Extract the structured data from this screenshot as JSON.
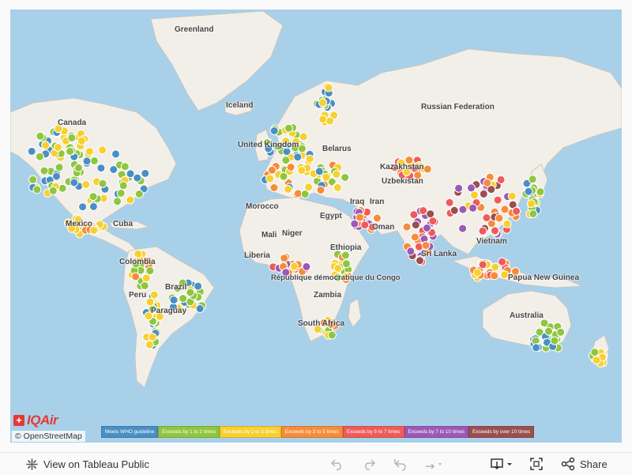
{
  "map": {
    "place_labels": [
      "Greenland",
      "Iceland",
      "Russian Federation",
      "Canada",
      "United Kingdom",
      "Belarus",
      "Kazakhstan",
      "Uzbekistan",
      "Morocco",
      "Iraq",
      "Iran",
      "Egypt",
      "Oman",
      "Mali",
      "Niger",
      "Ethiopia",
      "Liberia",
      "République démocratique du Congo",
      "Sri Lanka",
      "Vietnam",
      "Papua New Guinea",
      "Mexico",
      "Cuba",
      "Colombia",
      "Brazil",
      "Peru",
      "Paraguay",
      "Zambia",
      "South Africa",
      "Australia"
    ],
    "labels": {
      "greenland": "Greenland",
      "iceland": "Iceland",
      "russia": "Russian Federation",
      "canada": "Canada",
      "uk": "United Kingdom",
      "belarus": "Belarus",
      "kazakhstan": "Kazakhstan",
      "uzbekistan": "Uzbekistan",
      "morocco": "Morocco",
      "iraq": "Iraq",
      "iran": "Iran",
      "egypt": "Egypt",
      "oman": "Oman",
      "mali": "Mali",
      "niger": "Niger",
      "ethiopia": "Ethiopia",
      "liberia": "Liberia",
      "drc": "République démocratique du Congo",
      "srilanka": "Sri Lanka",
      "vietnam": "Vietnam",
      "png": "Papua New Guinea",
      "mexico": "Mexico",
      "cuba": "Cuba",
      "colombia": "Colombia",
      "brazil": "Brazil",
      "peru": "Peru",
      "paraguay": "Paraguay",
      "zambia": "Zambia",
      "southafrica": "South Africa",
      "australia": "Australia"
    },
    "attribution": "© OpenStreetMap",
    "brand": "IQAir",
    "colors": {
      "water": "#a9d0e9",
      "land": "#f2efe9",
      "border": "#c9c2b8"
    }
  },
  "legend": [
    {
      "label": "Meets WHO guideline",
      "color": "#4a8fc4"
    },
    {
      "label": "Exceeds by 1 to 2 times",
      "color": "#8ec63f"
    },
    {
      "label": "Exceeds by 2 to 3 times",
      "color": "#f7d030"
    },
    {
      "label": "Exceeds by 3 to 5 times",
      "color": "#f68c3a"
    },
    {
      "label": "Exceeds by 5 to 7 times",
      "color": "#ef5a5a"
    },
    {
      "label": "Exceeds by 7 to 10 times",
      "color": "#9b59b6"
    },
    {
      "label": "Exceeds by over 10 times",
      "color": "#9a4f4f"
    }
  ],
  "toolbar": {
    "view_label": "View on Tableau Public",
    "share_label": "Share",
    "icons": [
      "tableau-icon",
      "undo-icon",
      "redo-icon",
      "revert-icon",
      "refresh-icon",
      "download-icon",
      "fullscreen-icon",
      "share-icon"
    ]
  }
}
